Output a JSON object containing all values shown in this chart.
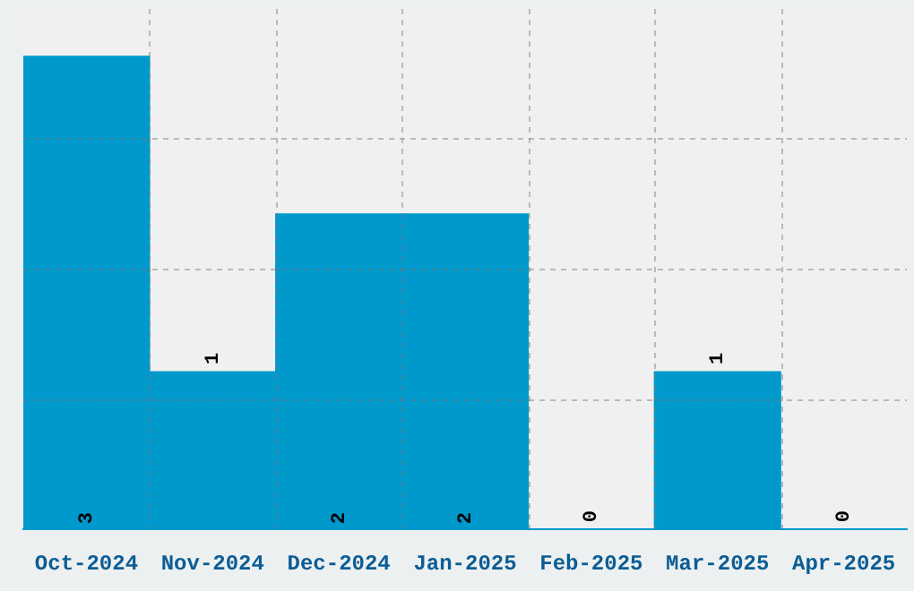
{
  "chart_data": {
    "type": "bar",
    "categories": [
      "Oct-2024",
      "Nov-2024",
      "Dec-2024",
      "Jan-2025",
      "Feb-2025",
      "Mar-2025",
      "Apr-2025"
    ],
    "values": [
      3,
      1,
      2,
      2,
      0,
      1,
      0
    ],
    "color": "#0099cc",
    "ylim": [
      0,
      3.3
    ],
    "yticks": [
      {
        "value": 0.83,
        "label": null
      },
      {
        "value": 1.65,
        "label": null
      },
      {
        "value": 2.48,
        "label": null
      }
    ],
    "tick_labels": "x",
    "grid": true,
    "data_labels": true
  }
}
